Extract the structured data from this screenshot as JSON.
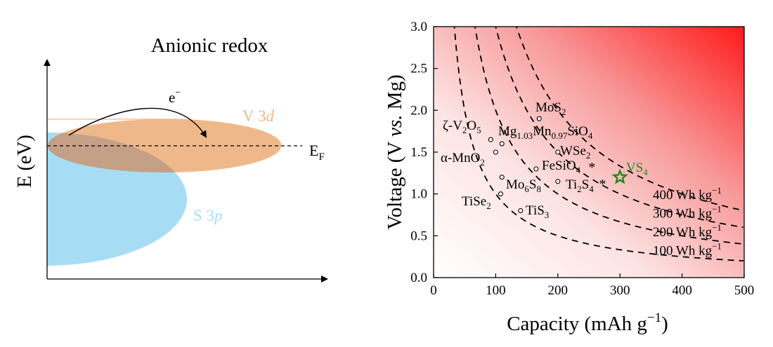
{
  "left_panel": {
    "title": "Anionic redox",
    "ylabel": "E (eV)",
    "electron_base": "e",
    "electron_sup": "−",
    "fermi_base": "E",
    "fermi_sub": "F",
    "v3d_prefix": "V 3",
    "v3d_italic": "d",
    "s3p_prefix": "S 3",
    "s3p_italic": "p",
    "colors": {
      "v3d": "#efb88a",
      "s3p": "#a7dcf5",
      "overlap": "#c4a086",
      "axis": "#000000"
    }
  },
  "chart_data": {
    "type": "scatter",
    "xlabel": "Capacity (mAh g⁻¹)",
    "ylabel": "Voltage (V vs. Mg)",
    "xlim": [
      0,
      500
    ],
    "ylim": [
      0.0,
      3.0
    ],
    "xticks": [
      "0",
      "100",
      "200",
      "300",
      "400",
      "500"
    ],
    "yticks": [
      "0.0",
      "0.5",
      "1.0",
      "1.5",
      "2.0",
      "2.5",
      "3.0"
    ],
    "background_gradient": "white to red toward high capacity / high voltage",
    "energy_density_curves": [
      {
        "energy": 400,
        "label_base": "400 Wh kg",
        "label_sup": "−1"
      },
      {
        "energy": 300,
        "label_base": "300 Wh kg",
        "label_sup": "−1"
      },
      {
        "energy": 200,
        "label_base": "200 Wh kg",
        "label_sup": "−1"
      },
      {
        "energy": 100,
        "label_base": "100 Wh kg",
        "label_sup": "−1"
      }
    ],
    "points": [
      {
        "name": "MoS2",
        "x": 170,
        "y": 1.9,
        "marker": "circle"
      },
      {
        "name": "ζ-V2O5",
        "x": 92,
        "y": 1.65,
        "marker": "circle"
      },
      {
        "name": "Mg1.03Mn0.97SiO4",
        "x": 110,
        "y": 1.6,
        "marker": "circle"
      },
      {
        "name": "α-MnO2",
        "x": 100,
        "y": 1.5,
        "marker": "circle"
      },
      {
        "name": "WSe2",
        "x": 200,
        "y": 1.5,
        "marker": "circle"
      },
      {
        "name": "FeSiO4",
        "x": 165,
        "y": 1.3,
        "marker": "circle"
      },
      {
        "name": "Mo6S8",
        "x": 110,
        "y": 1.2,
        "marker": "circle"
      },
      {
        "name": "Ti2S4",
        "x": 200,
        "y": 1.15,
        "marker": "circle"
      },
      {
        "name": "TiSe2",
        "x": 108,
        "y": 1.0,
        "marker": "circle"
      },
      {
        "name": "TiS3",
        "x": 140,
        "y": 0.8,
        "marker": "circle"
      },
      {
        "name": "VS4",
        "x": 300,
        "y": 1.2,
        "marker": "star",
        "color": "#1e8a1e"
      }
    ],
    "asterisks": [
      {
        "after": "FeSiO4",
        "x": 255,
        "y": 1.35
      },
      {
        "after": "Ti2S4",
        "x": 272,
        "y": 1.15
      }
    ]
  }
}
